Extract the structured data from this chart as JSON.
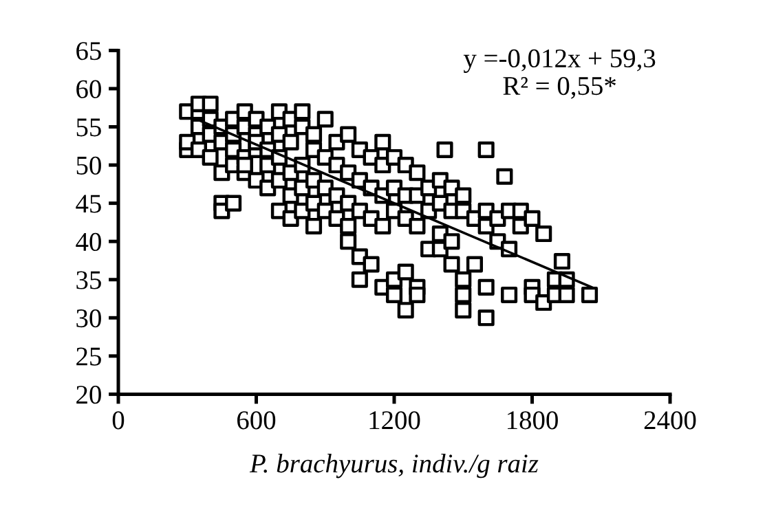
{
  "chart_data": {
    "type": "scatter",
    "xlabel": "P. brachyurus, indiv./g raiz",
    "xlim": [
      0,
      2400
    ],
    "xticks": [
      0,
      600,
      1200,
      1800,
      2400
    ],
    "ylim": [
      20,
      65
    ],
    "yticks": [
      20,
      25,
      30,
      35,
      40,
      45,
      50,
      55,
      60,
      65
    ],
    "grid": false,
    "legend": false,
    "annotations": [
      "y =-0,012x + 59,3",
      "R² = 0,55*"
    ],
    "series": [
      {
        "marker": "square",
        "color": "#000000",
        "x": [
          300,
          300,
          300,
          350,
          350,
          350,
          350,
          400,
          400,
          400,
          400,
          450,
          450,
          450,
          450,
          450,
          500,
          500,
          500,
          500,
          500,
          550,
          550,
          550,
          550,
          550,
          600,
          600,
          600,
          600,
          600,
          650,
          650,
          650,
          650,
          700,
          700,
          700,
          700,
          700,
          750,
          750,
          750,
          750,
          750,
          800,
          800,
          800,
          800,
          800,
          850,
          850,
          850,
          850,
          850,
          900,
          900,
          900,
          900,
          950,
          950,
          950,
          950,
          1000,
          1000,
          1000,
          1000,
          1000,
          1050,
          1050,
          1050,
          1050,
          1050,
          1100,
          1100,
          1100,
          1100,
          1150,
          1150,
          1150,
          1150,
          1150,
          1200,
          1200,
          1200,
          1200,
          1200,
          1250,
          1250,
          1250,
          1250,
          1250,
          1300,
          1300,
          1300,
          1300,
          1300,
          1350,
          1350,
          1350,
          1420,
          1400,
          1400,
          1400,
          1400,
          1450,
          1450,
          1450,
          1450,
          1500,
          1500,
          1500,
          1500,
          1500,
          1550,
          1550,
          1600,
          1600,
          1600,
          1600,
          1600,
          1650,
          1650,
          1680,
          1700,
          1700,
          1700,
          1750,
          1750,
          1800,
          1800,
          1800,
          1850,
          1850,
          1930,
          1900,
          1900,
          1950,
          1950,
          2050
        ],
        "values": [
          52,
          53,
          57,
          57,
          58,
          55,
          52,
          58,
          56,
          54,
          51,
          55,
          53,
          49,
          45,
          44,
          56,
          54,
          52,
          50,
          45,
          57,
          55,
          51,
          49,
          50,
          56,
          54,
          52,
          48,
          53,
          55,
          52,
          50,
          47,
          57,
          54,
          51,
          48,
          44,
          56,
          53,
          49,
          46,
          43,
          57,
          55,
          50,
          47,
          44,
          54,
          52,
          48,
          45,
          42,
          56,
          51,
          47,
          44,
          53,
          50,
          46,
          43,
          54,
          49,
          45,
          42,
          40,
          52,
          48,
          44,
          38,
          35,
          51,
          47,
          43,
          37,
          53,
          50,
          46,
          42,
          34,
          51,
          47,
          44,
          35,
          33,
          50,
          46,
          43,
          36,
          31,
          49,
          46,
          42,
          34,
          33,
          47,
          44,
          39,
          52,
          48,
          45,
          41,
          39,
          47,
          44,
          40,
          37,
          46,
          44,
          35,
          33,
          31,
          43,
          37,
          52,
          44,
          42,
          30,
          34,
          43,
          40,
          48.5,
          44,
          39,
          33,
          44,
          42,
          43,
          34,
          33,
          41,
          32,
          37.4,
          35,
          33,
          35,
          33,
          33
        ]
      },
      {
        "type": "line",
        "marker": "none",
        "color": "#000000",
        "x": [
          340,
          2060
        ],
        "values": [
          56.0,
          34.0
        ]
      }
    ]
  }
}
